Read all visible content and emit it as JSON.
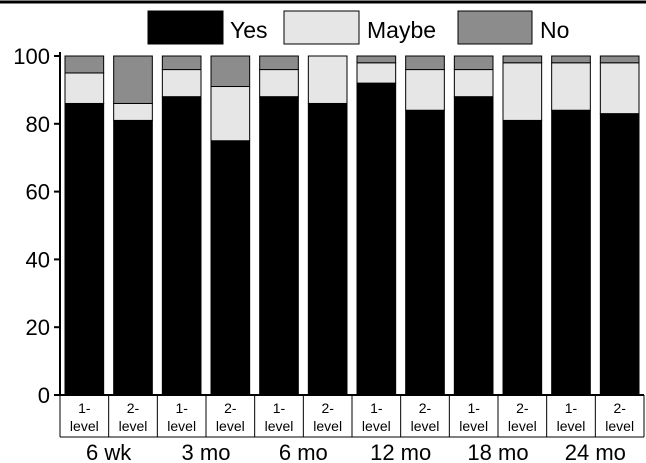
{
  "chart_data": {
    "type": "bar",
    "stacked": true,
    "ylim": [
      0,
      100
    ],
    "yticks": [
      "0",
      "20",
      "40",
      "60",
      "80",
      "100"
    ],
    "categories": [
      {
        "top": "1-",
        "bottom": "level"
      },
      {
        "top": "2-",
        "bottom": "level"
      },
      {
        "top": "1-",
        "bottom": "level"
      },
      {
        "top": "2-",
        "bottom": "level"
      },
      {
        "top": "1-",
        "bottom": "level"
      },
      {
        "top": "2-",
        "bottom": "level"
      },
      {
        "top": "1-",
        "bottom": "level"
      },
      {
        "top": "2-",
        "bottom": "level"
      },
      {
        "top": "1-",
        "bottom": "level"
      },
      {
        "top": "2-",
        "bottom": "level"
      },
      {
        "top": "1-",
        "bottom": "level"
      },
      {
        "top": "2-",
        "bottom": "level"
      }
    ],
    "groups": [
      "6 wk",
      "3 mo",
      "6 mo",
      "12 mo",
      "18 mo",
      "24 mo"
    ],
    "series": [
      {
        "name": "Yes",
        "color": "#000000",
        "values": [
          86,
          81,
          88,
          75,
          88,
          86,
          92,
          84,
          88,
          81,
          84,
          83
        ]
      },
      {
        "name": "Maybe",
        "color": "#e6e6e6",
        "values": [
          9,
          5,
          8,
          16,
          8,
          14,
          6,
          12,
          8,
          17,
          14,
          15
        ]
      },
      {
        "name": "No",
        "color": "#8c8c8c",
        "values": [
          5,
          14,
          4,
          9,
          4,
          0,
          2,
          4,
          4,
          2,
          2,
          2
        ]
      }
    ],
    "legend_position": "top"
  }
}
